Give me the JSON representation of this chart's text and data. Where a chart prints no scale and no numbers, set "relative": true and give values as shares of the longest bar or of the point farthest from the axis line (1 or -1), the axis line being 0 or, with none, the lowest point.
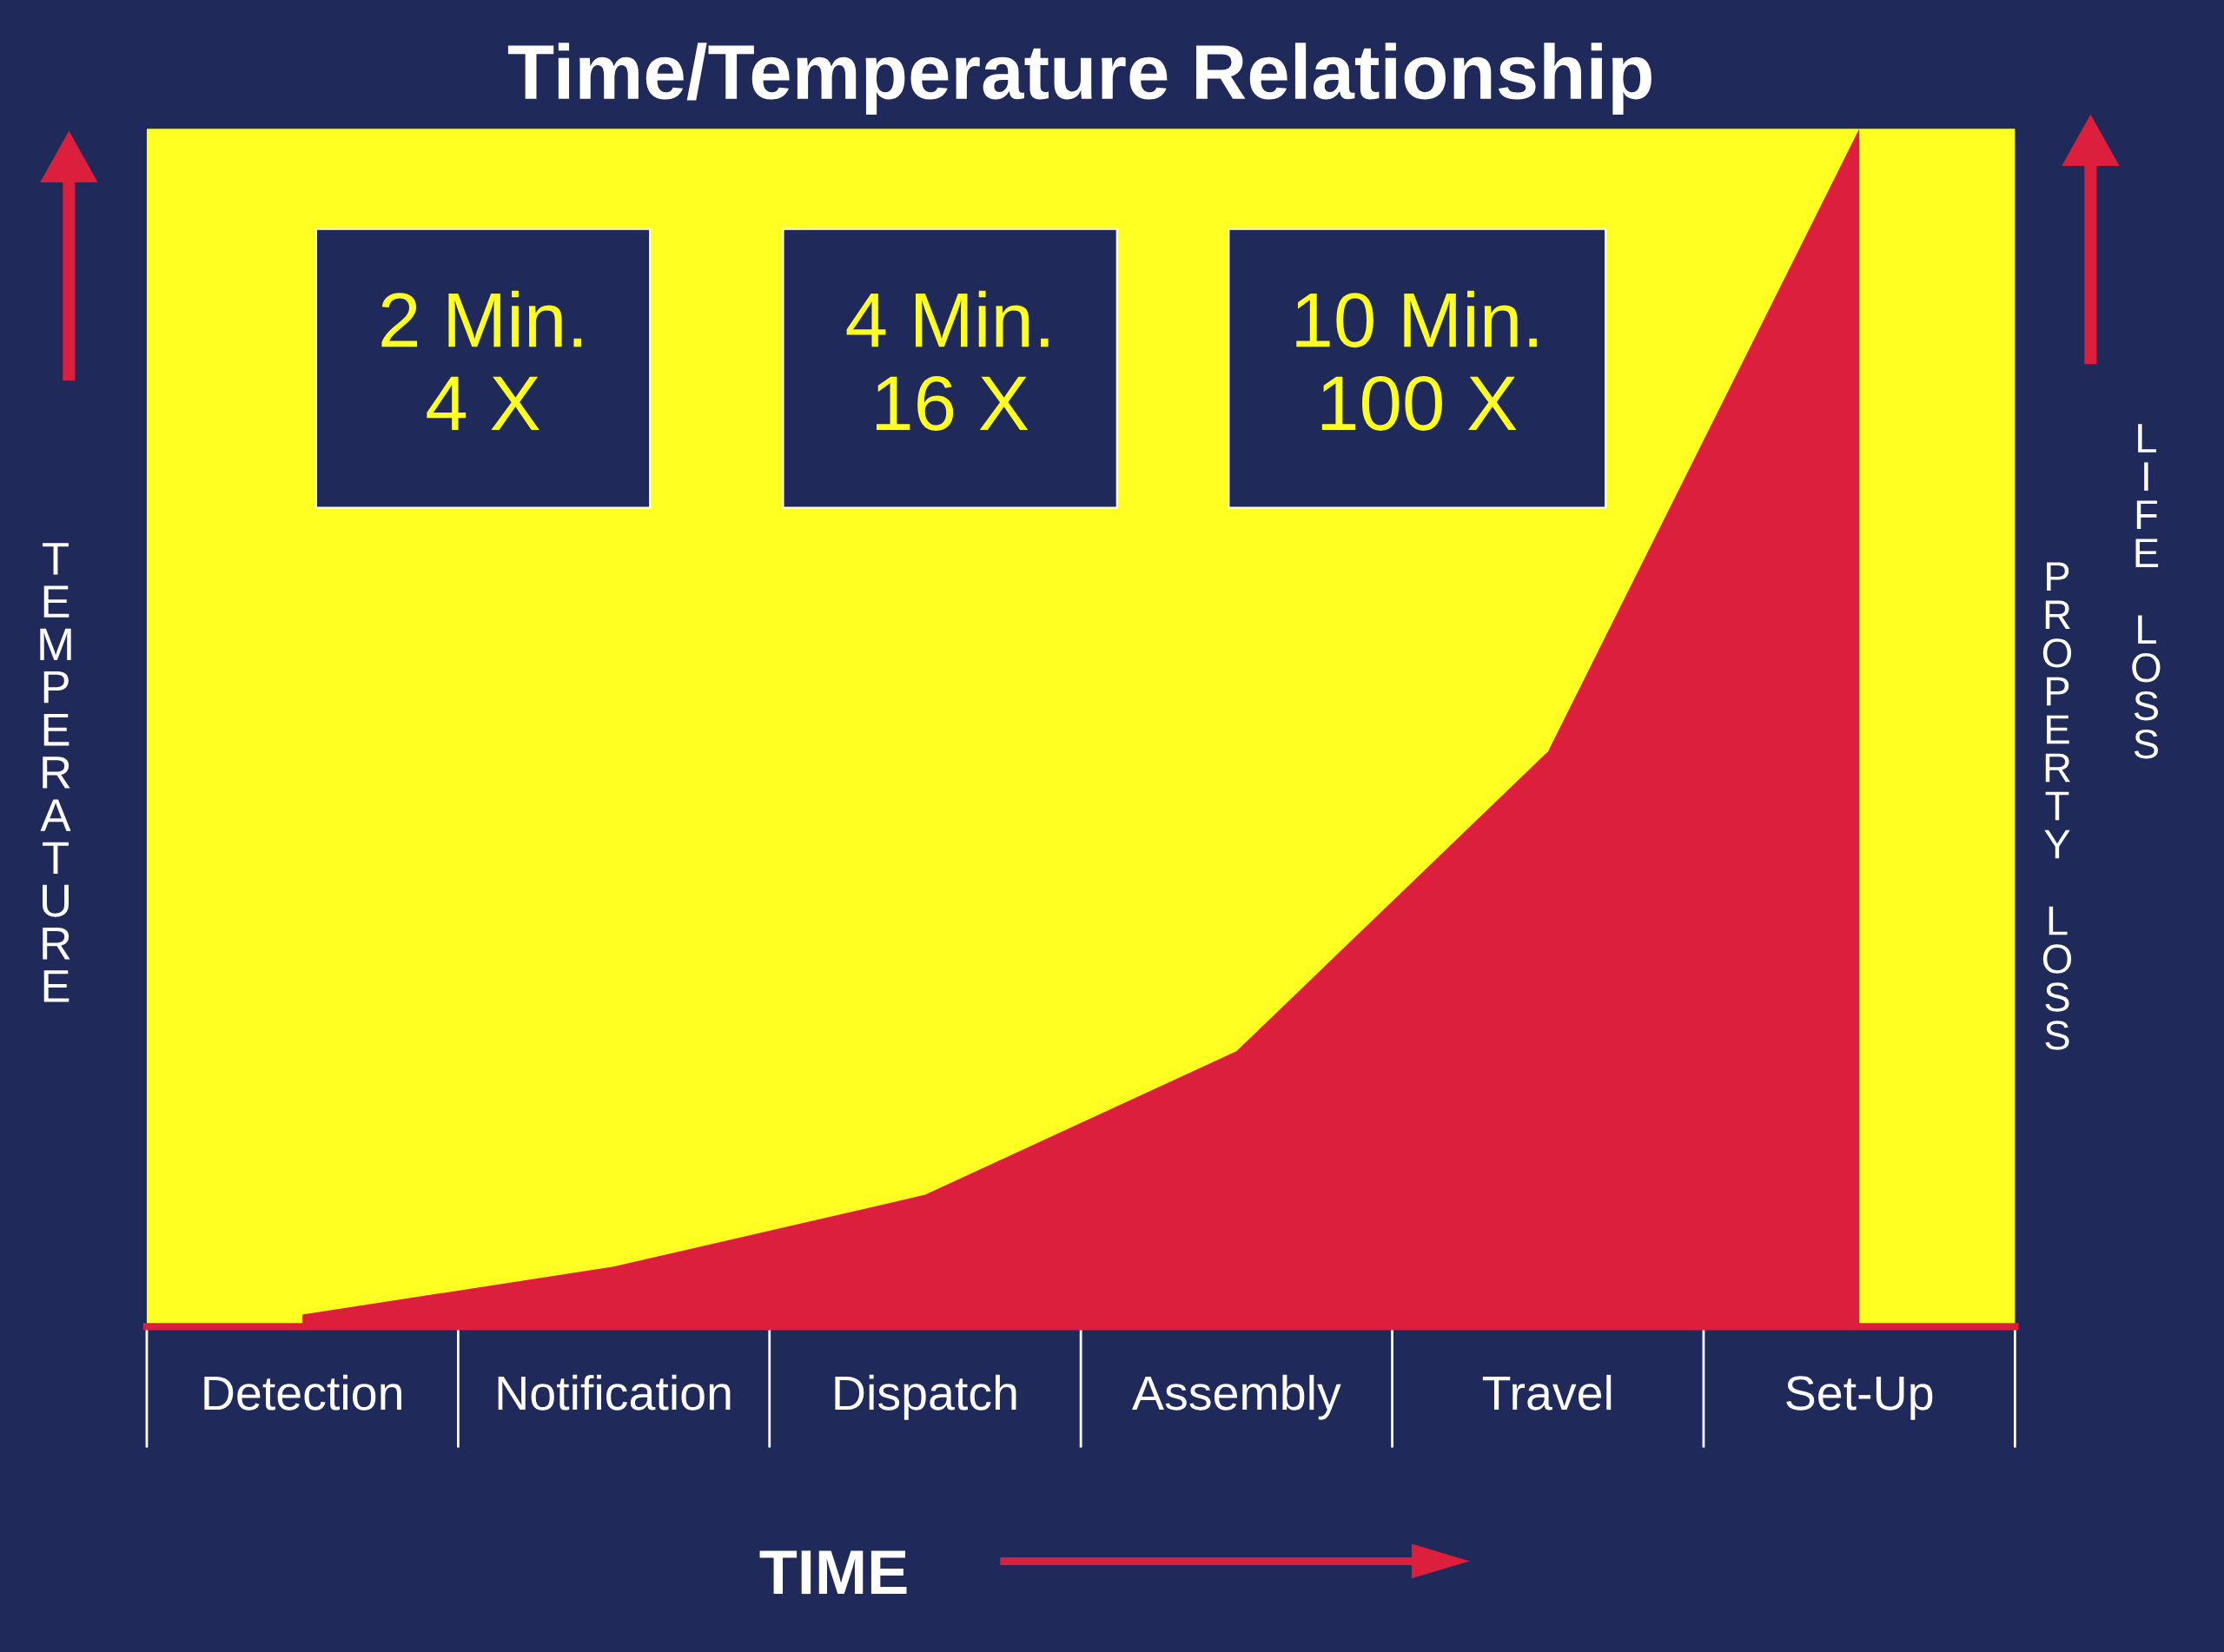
{
  "chart_data": {
    "type": "area",
    "title": "Time/Temperature Relationship",
    "xlabel": "TIME",
    "ylabel": "TEMPERATURE",
    "y2label": "PROPERTY LOSS",
    "categories": [
      "Detection",
      "Notification",
      "Dispatch",
      "Assembly",
      "Travel",
      "Set-Up"
    ],
    "relative": true,
    "series": [
      {
        "color": "#dc1f3c",
        "values": [
          0.01,
          0.05,
          0.11,
          0.23,
          0.48,
          1.0
        ]
      }
    ],
    "annotations": [
      "2 Min.\n4 X",
      "4 Min.\n16 X",
      "10 Min.\n100 X",
      "LIFE LOSS"
    ],
    "legend": false,
    "grid": false
  }
}
